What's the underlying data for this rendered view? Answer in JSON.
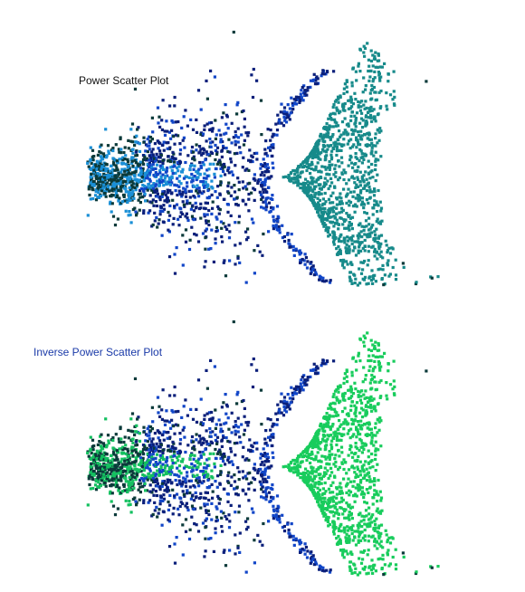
{
  "chart_data": [
    {
      "type": "scatter",
      "title": "Power Scatter Plot",
      "title_color": "#111111",
      "colors": {
        "outer": "#0b3a3a",
        "core": "#0a1f7a",
        "mid": "#1146c8",
        "light": "#1a8fd6",
        "fan": "#178a8a"
      },
      "axes_visible": false,
      "legend": "none",
      "grid": false
    },
    {
      "type": "scatter",
      "title": "Inverse Power Scatter Plot",
      "title_color": "#1a3aa8",
      "colors": {
        "outer": "#0b3a3a",
        "core": "#0a1f7a",
        "mid": "#1146c8",
        "light": "#14c060",
        "fan": "#18cc5c"
      },
      "axes_visible": false,
      "legend": "none",
      "grid": false
    }
  ]
}
